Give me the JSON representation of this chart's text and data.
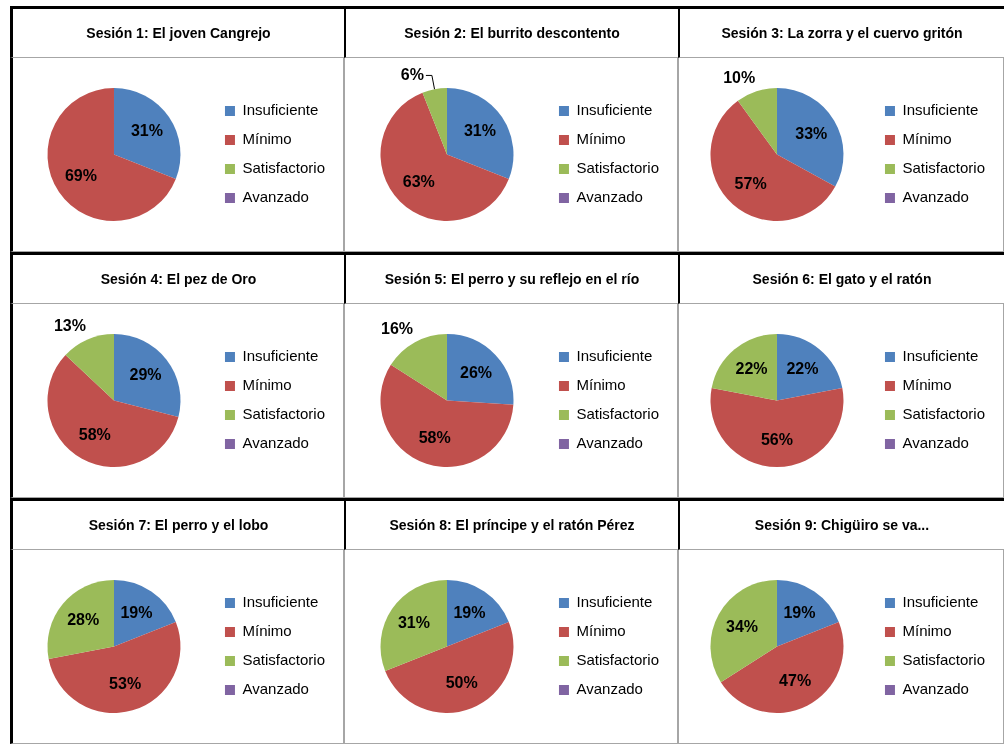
{
  "chart_data": [
    {
      "type": "pie",
      "title": "Sesión 1: El joven Cangrejo",
      "categories": [
        "Insuficiente",
        "Mínimo",
        "Satisfactorio",
        "Avanzado"
      ],
      "values": [
        31,
        69,
        0,
        0
      ],
      "colors": [
        "#4f81bd",
        "#c0504d",
        "#9bbb59",
        "#8064a2"
      ],
      "value_labels": [
        "31%",
        "69%",
        null,
        null
      ],
      "legend": "right"
    },
    {
      "type": "pie",
      "title": "Sesión 2: El burrito descontento",
      "categories": [
        "Insuficiente",
        "Mínimo",
        "Satisfactorio",
        "Avanzado"
      ],
      "values": [
        31,
        63,
        6,
        0
      ],
      "colors": [
        "#4f81bd",
        "#c0504d",
        "#9bbb59",
        "#8064a2"
      ],
      "value_labels": [
        "31%",
        "63%",
        "6%",
        null
      ],
      "legend": "right"
    },
    {
      "type": "pie",
      "title": "Sesión 3: La zorra y el cuervo gritón",
      "categories": [
        "Insuficiente",
        "Mínimo",
        "Satisfactorio",
        "Avanzado"
      ],
      "values": [
        33,
        57,
        10,
        0
      ],
      "colors": [
        "#4f81bd",
        "#c0504d",
        "#9bbb59",
        "#8064a2"
      ],
      "value_labels": [
        "33%",
        "57%",
        "10%",
        null
      ],
      "legend": "right"
    },
    {
      "type": "pie",
      "title": "Sesión 4: El pez de Oro",
      "categories": [
        "Insuficiente",
        "Mínimo",
        "Satisfactorio",
        "Avanzado"
      ],
      "values": [
        29,
        58,
        13,
        0
      ],
      "colors": [
        "#4f81bd",
        "#c0504d",
        "#9bbb59",
        "#8064a2"
      ],
      "value_labels": [
        "29%",
        "58%",
        "13%",
        null
      ],
      "legend": "right"
    },
    {
      "type": "pie",
      "title": "Sesión 5: El perro y su reflejo en el río",
      "categories": [
        "Insuficiente",
        "Mínimo",
        "Satisfactorio",
        "Avanzado"
      ],
      "values": [
        26,
        58,
        16,
        0
      ],
      "colors": [
        "#4f81bd",
        "#c0504d",
        "#9bbb59",
        "#8064a2"
      ],
      "value_labels": [
        "26%",
        "58%",
        "16%",
        null
      ],
      "legend": "right"
    },
    {
      "type": "pie",
      "title": "Sesión 6: El gato y el ratón",
      "categories": [
        "Insuficiente",
        "Mínimo",
        "Satisfactorio",
        "Avanzado"
      ],
      "values": [
        22,
        56,
        22,
        0
      ],
      "colors": [
        "#4f81bd",
        "#c0504d",
        "#9bbb59",
        "#8064a2"
      ],
      "value_labels": [
        "22%",
        "56%",
        "22%",
        null
      ],
      "legend": "right"
    },
    {
      "type": "pie",
      "title": "Sesión 7: El perro y el lobo",
      "categories": [
        "Insuficiente",
        "Mínimo",
        "Satisfactorio",
        "Avanzado"
      ],
      "values": [
        19,
        53,
        28,
        0
      ],
      "colors": [
        "#4f81bd",
        "#c0504d",
        "#9bbb59",
        "#8064a2"
      ],
      "value_labels": [
        "19%",
        "53%",
        "28%",
        null
      ],
      "legend": "right"
    },
    {
      "type": "pie",
      "title": "Sesión 8: El príncipe y el ratón Pérez",
      "categories": [
        "Insuficiente",
        "Mínimo",
        "Satisfactorio",
        "Avanzado"
      ],
      "values": [
        19,
        50,
        31,
        0
      ],
      "colors": [
        "#4f81bd",
        "#c0504d",
        "#9bbb59",
        "#8064a2"
      ],
      "value_labels": [
        "19%",
        "50%",
        "31%",
        null
      ],
      "legend": "right"
    },
    {
      "type": "pie",
      "title": "Sesión 9: Chigüiro se va...",
      "categories": [
        "Insuficiente",
        "Mínimo",
        "Satisfactorio",
        "Avanzado"
      ],
      "values": [
        19,
        47,
        34,
        0
      ],
      "colors": [
        "#4f81bd",
        "#c0504d",
        "#9bbb59",
        "#8064a2"
      ],
      "value_labels": [
        "19%",
        "47%",
        "34%",
        null
      ],
      "legend": "right"
    }
  ]
}
